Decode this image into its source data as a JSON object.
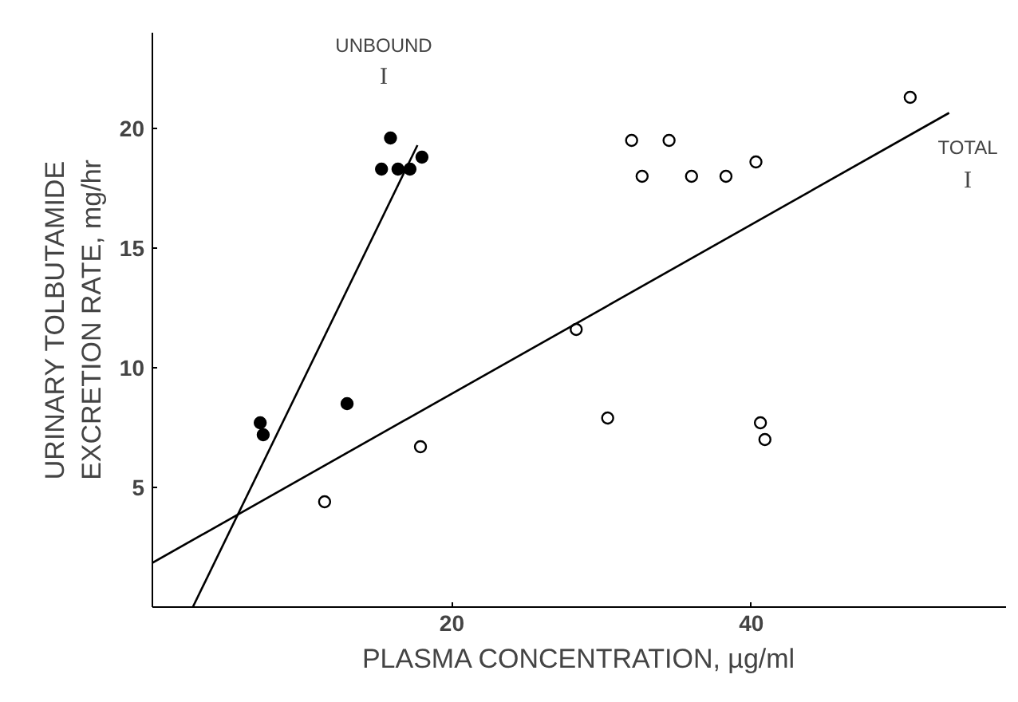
{
  "chart_data": {
    "type": "scatter",
    "xlabel": "PLASMA CONCENTRATION, µg/ml",
    "ylabel": "URINARY TOLBUTAMIDE\nEXCRETION RATE, mg/hr",
    "xlim": [
      0,
      57
    ],
    "ylim": [
      0,
      24
    ],
    "xticks": [
      20,
      40
    ],
    "yticks": [
      5,
      10,
      15,
      20
    ],
    "grid": false,
    "series": [
      {
        "color": "#000000",
        "marker": "circle",
        "x": [
          7.2,
          7.4,
          13.0,
          15.3,
          15.9,
          16.4,
          17.2,
          18.0
        ],
        "values": [
          7.7,
          7.2,
          8.5,
          18.3,
          19.6,
          18.3,
          18.3,
          18.8
        ]
      },
      {
        "color": "#ffffff",
        "marker": "circle",
        "x": [
          11.5,
          17.9,
          28.3,
          30.4,
          32.0,
          32.7,
          34.5,
          36.0,
          38.3,
          40.3,
          40.6,
          40.9,
          50.6
        ],
        "values": [
          4.4,
          6.7,
          11.6,
          7.9,
          19.5,
          18.0,
          19.5,
          18.0,
          18.0,
          18.6,
          7.7,
          7.0,
          21.3
        ]
      },
      {
        "type": "line",
        "color": "#000000",
        "x": [
          2.7,
          17.7
        ],
        "values": [
          0,
          19.3
        ]
      },
      {
        "type": "line",
        "color": "#000000",
        "x": [
          0,
          53.2
        ],
        "values": [
          1.85,
          20.65
        ]
      }
    ],
    "annotations": [
      "UNBOUND",
      "I",
      "TOTAL",
      "I"
    ]
  }
}
